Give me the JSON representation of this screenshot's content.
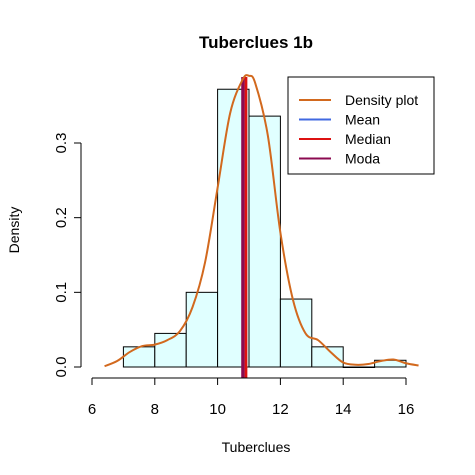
{
  "chart_data": {
    "type": "histogram",
    "title": "Tuberclues 1b",
    "xlabel": "Tuberclues",
    "ylabel": "Density",
    "xlim": [
      6,
      16.4
    ],
    "ylim": [
      0,
      0.385
    ],
    "x_ticks": [
      6,
      8,
      10,
      12,
      14,
      16
    ],
    "y_ticks": [
      0.0,
      0.1,
      0.2,
      0.3
    ],
    "y_tick_labels": [
      "0.0",
      "0.1",
      "0.2",
      "0.3"
    ],
    "bar_fill": "#e0ffff",
    "bar_edges": [
      7,
      8,
      9,
      10,
      11,
      12,
      13,
      14,
      15,
      16
    ],
    "bar_values": [
      0.027,
      0.045,
      0.1,
      0.372,
      0.336,
      0.091,
      0.027,
      0.0,
      0.009
    ],
    "density_color": "#d2691e",
    "density_curve": {
      "x": [
        6.4,
        6.8,
        7.2,
        7.6,
        8.0,
        8.4,
        8.8,
        9.2,
        9.6,
        10.0,
        10.4,
        10.8,
        11.0,
        11.2,
        11.6,
        12.0,
        12.4,
        12.8,
        13.2,
        13.6,
        14.0,
        14.4,
        14.8,
        15.2,
        15.6,
        16.0,
        16.4
      ],
      "y": [
        0.001,
        0.008,
        0.02,
        0.028,
        0.03,
        0.036,
        0.048,
        0.08,
        0.14,
        0.24,
        0.34,
        0.385,
        0.39,
        0.38,
        0.31,
        0.18,
        0.09,
        0.045,
        0.036,
        0.02,
        0.006,
        0.003,
        0.004,
        0.008,
        0.01,
        0.005,
        0.002
      ]
    },
    "vertical_lines": [
      {
        "name": "Mean",
        "x": 10.85,
        "color": "#4169e1"
      },
      {
        "name": "Median",
        "x": 10.9,
        "color": "#dd1111"
      },
      {
        "name": "Moda",
        "x": 10.8,
        "color": "#8b0a50"
      }
    ],
    "legend": {
      "position": "top-right",
      "entries": [
        {
          "label": "Density plot",
          "color": "#d2691e"
        },
        {
          "label": "Mean",
          "color": "#4169e1"
        },
        {
          "label": "Median",
          "color": "#dd1111"
        },
        {
          "label": "Moda",
          "color": "#8b0a50"
        }
      ]
    }
  }
}
